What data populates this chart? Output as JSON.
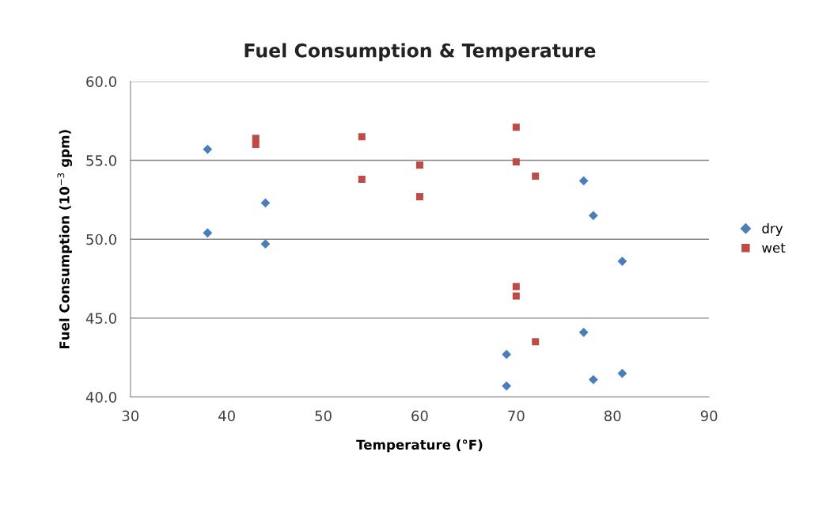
{
  "chart_data": {
    "type": "scatter",
    "title": "Fuel Consumption & Temperature",
    "xlabel": "Temperature (°F)",
    "ylabel": "Fuel Consumption (10$^{−3}$ gpm)",
    "series": [
      {
        "name": "dry",
        "color": "#4a7ebb",
        "marker": "diamond",
        "x": [
          38,
          38,
          44,
          44,
          77,
          78,
          81,
          77,
          69,
          69,
          78,
          81
        ],
        "values": [
          55.7,
          50.4,
          52.3,
          49.7,
          53.7,
          51.5,
          48.6,
          44.1,
          42.7,
          40.7,
          41.1,
          41.5
        ]
      },
      {
        "name": "wet",
        "color": "#be4b48",
        "marker": "square",
        "x": [
          43,
          43,
          54,
          54,
          60,
          60,
          70,
          70,
          72,
          70,
          70,
          72
        ],
        "values": [
          56.4,
          56.0,
          56.5,
          53.8,
          54.7,
          52.7,
          57.1,
          54.9,
          54.0,
          47.0,
          46.4,
          43.5
        ]
      }
    ],
    "xlim": [
      30,
      90
    ],
    "xticks": [
      30,
      40,
      50,
      60,
      70,
      80,
      90
    ],
    "ylim": [
      40,
      60
    ],
    "yticks": [
      {
        "value": 40,
        "label": "40.0"
      },
      {
        "value": 45,
        "label": "45.0"
      },
      {
        "value": 50,
        "label": "50.0"
      },
      {
        "value": 55,
        "label": "55.0"
      },
      {
        "value": 60,
        "label": "60.0"
      }
    ],
    "grid": "y",
    "legend": "right"
  }
}
